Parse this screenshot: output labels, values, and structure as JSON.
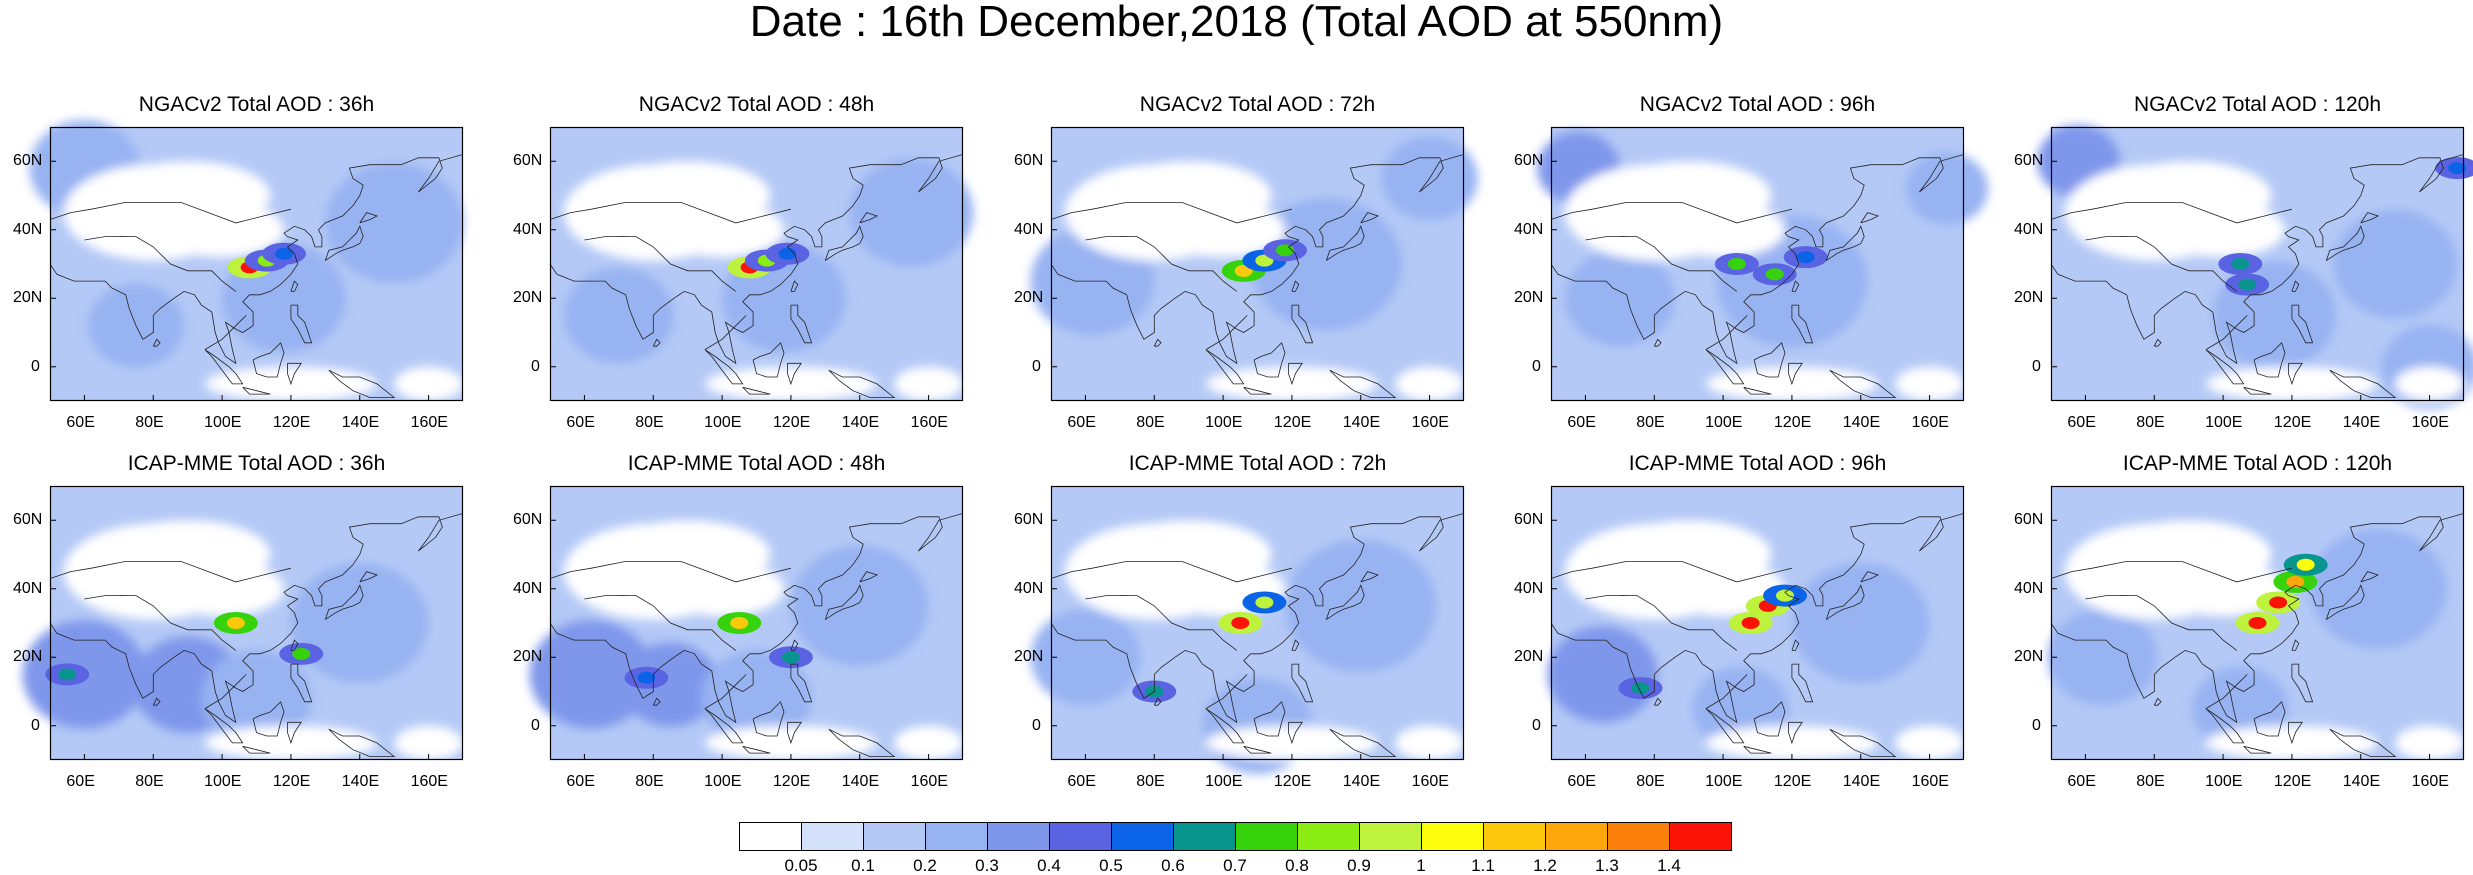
{
  "title": "Date : 16th December,2018 (Total AOD at 550nm)",
  "panels": [
    {
      "title": "NGACv2 Total AOD : 36h"
    },
    {
      "title": "NGACv2 Total AOD : 48h"
    },
    {
      "title": "NGACv2 Total AOD : 72h"
    },
    {
      "title": "NGACv2 Total AOD : 96h"
    },
    {
      "title": "NGACv2 Total AOD : 120h"
    },
    {
      "title": "ICAP-MME Total AOD : 36h"
    },
    {
      "title": "ICAP-MME Total AOD : 48h"
    },
    {
      "title": "ICAP-MME Total AOD : 72h"
    },
    {
      "title": "ICAP-MME Total AOD : 96h"
    },
    {
      "title": "ICAP-MME Total AOD : 120h"
    }
  ],
  "axes": {
    "x_ticks": [
      "60E",
      "80E",
      "100E",
      "120E",
      "140E",
      "160E"
    ],
    "y_ticks": [
      "60N",
      "40N",
      "20N",
      "0"
    ]
  },
  "colorbar": {
    "levels": [
      "0.05",
      "0.1",
      "0.2",
      "0.3",
      "0.4",
      "0.5",
      "0.6",
      "0.7",
      "0.8",
      "0.9",
      "1",
      "1.1",
      "1.2",
      "1.3",
      "1.4"
    ],
    "colors": [
      "#ffffff",
      "#d3e1fb",
      "#b4c9f6",
      "#98b3f2",
      "#7f97eb",
      "#5a64e3",
      "#0b64e8",
      "#07958d",
      "#36d30d",
      "#8bec13",
      "#bff23c",
      "#fdfe0d",
      "#fbc80b",
      "#fba60b",
      "#fb7f0b",
      "#fb1307"
    ]
  },
  "chart_data": {
    "type": "heatmap",
    "title": "Date : 16th December,2018 (Total AOD at 550nm)",
    "x_range": [
      50,
      170
    ],
    "y_range": [
      -10,
      70
    ],
    "x_ticks": [
      "60E",
      "80E",
      "100E",
      "120E",
      "140E",
      "160E"
    ],
    "y_ticks": [
      "60N",
      "40N",
      "20N",
      "0"
    ],
    "levels": [
      0.05,
      0.1,
      0.2,
      0.3,
      0.4,
      0.5,
      0.6,
      0.7,
      0.8,
      0.9,
      1,
      1.1,
      1.2,
      1.3,
      1.4
    ],
    "panels": [
      {
        "name": "NGACv2 Total AOD : 36h",
        "hotspots": [
          {
            "lon": 108,
            "lat": 29,
            "aod": 1.4
          },
          {
            "lon": 113,
            "lat": 31,
            "aod": 0.8
          },
          {
            "lon": 118,
            "lat": 33,
            "aod": 0.5
          }
        ]
      },
      {
        "name": "NGACv2 Total AOD : 48h",
        "hotspots": [
          {
            "lon": 108,
            "lat": 29,
            "aod": 1.4
          },
          {
            "lon": 113,
            "lat": 31,
            "aod": 0.8
          },
          {
            "lon": 119,
            "lat": 33,
            "aod": 0.5
          }
        ]
      },
      {
        "name": "NGACv2 Total AOD : 72h",
        "hotspots": [
          {
            "lon": 106,
            "lat": 28,
            "aod": 1.1
          },
          {
            "lon": 112,
            "lat": 31,
            "aod": 0.9
          },
          {
            "lon": 118,
            "lat": 34,
            "aod": 0.7
          }
        ]
      },
      {
        "name": "NGACv2 Total AOD : 96h",
        "hotspots": [
          {
            "lon": 104,
            "lat": 30,
            "aod": 0.7
          },
          {
            "lon": 115,
            "lat": 27,
            "aod": 0.7
          },
          {
            "lon": 124,
            "lat": 32,
            "aod": 0.5
          }
        ]
      },
      {
        "name": "NGACv2 Total AOD : 120h",
        "hotspots": [
          {
            "lon": 105,
            "lat": 30,
            "aod": 0.6
          },
          {
            "lon": 107,
            "lat": 24,
            "aod": 0.6
          },
          {
            "lon": 168,
            "lat": 58,
            "aod": 0.5
          }
        ]
      },
      {
        "name": "ICAP-MME Total AOD : 36h",
        "hotspots": [
          {
            "lon": 104,
            "lat": 30,
            "aod": 1.1
          },
          {
            "lon": 123,
            "lat": 21,
            "aod": 0.7
          },
          {
            "lon": 55,
            "lat": 15,
            "aod": 0.6
          }
        ]
      },
      {
        "name": "ICAP-MME Total AOD : 48h",
        "hotspots": [
          {
            "lon": 105,
            "lat": 30,
            "aod": 1.1
          },
          {
            "lon": 120,
            "lat": 20,
            "aod": 0.6
          },
          {
            "lon": 78,
            "lat": 14,
            "aod": 0.5
          }
        ]
      },
      {
        "name": "ICAP-MME Total AOD : 72h",
        "hotspots": [
          {
            "lon": 105,
            "lat": 30,
            "aod": 1.4
          },
          {
            "lon": 112,
            "lat": 36,
            "aod": 0.9
          },
          {
            "lon": 80,
            "lat": 10,
            "aod": 0.6
          }
        ]
      },
      {
        "name": "ICAP-MME Total AOD : 96h",
        "hotspots": [
          {
            "lon": 108,
            "lat": 30,
            "aod": 1.4
          },
          {
            "lon": 113,
            "lat": 35,
            "aod": 1.4
          },
          {
            "lon": 118,
            "lat": 38,
            "aod": 0.9
          },
          {
            "lon": 76,
            "lat": 11,
            "aod": 0.6
          }
        ]
      },
      {
        "name": "ICAP-MME Total AOD : 120h",
        "hotspots": [
          {
            "lon": 110,
            "lat": 30,
            "aod": 1.4
          },
          {
            "lon": 116,
            "lat": 36,
            "aod": 1.4
          },
          {
            "lon": 121,
            "lat": 42,
            "aod": 1.2
          },
          {
            "lon": 124,
            "lat": 47,
            "aod": 1.0
          }
        ]
      }
    ]
  }
}
